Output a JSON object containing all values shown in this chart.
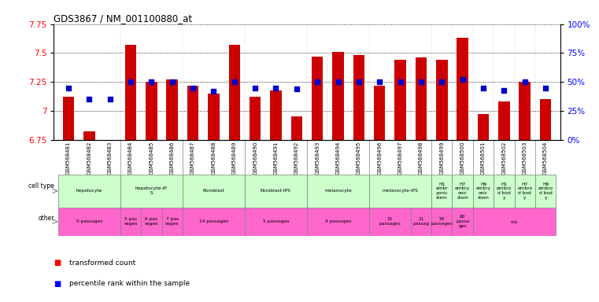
{
  "title": "GDS3867 / NM_001100880_at",
  "samples": [
    "GSM568481",
    "GSM568482",
    "GSM568483",
    "GSM568484",
    "GSM568485",
    "GSM568486",
    "GSM568487",
    "GSM568488",
    "GSM568489",
    "GSM568490",
    "GSM568491",
    "GSM568492",
    "GSM568493",
    "GSM568494",
    "GSM568495",
    "GSM568496",
    "GSM568497",
    "GSM568498",
    "GSM568499",
    "GSM568500",
    "GSM568501",
    "GSM568502",
    "GSM568503",
    "GSM568504"
  ],
  "bar_values": [
    7.12,
    6.82,
    6.73,
    7.57,
    7.25,
    7.27,
    7.22,
    7.15,
    7.57,
    7.12,
    7.18,
    6.95,
    7.47,
    7.51,
    7.48,
    7.22,
    7.44,
    7.46,
    7.44,
    7.63,
    6.97,
    7.08,
    7.25,
    7.1
  ],
  "percentile_values": [
    45,
    35,
    35,
    50,
    50,
    50,
    45,
    42,
    50,
    45,
    45,
    44,
    50,
    50,
    50,
    50,
    50,
    50,
    50,
    52,
    45,
    43,
    50,
    45
  ],
  "ylim_left": [
    6.75,
    7.75
  ],
  "ylim_right": [
    0,
    100
  ],
  "yticks_left": [
    6.75,
    7.0,
    7.25,
    7.5,
    7.75
  ],
  "ytick_labels_left": [
    "6.75",
    "7",
    "7.25",
    "7.5",
    "7.75"
  ],
  "yticks_right": [
    0,
    25,
    50,
    75,
    100
  ],
  "ytick_labels_right": [
    "0%",
    "25%",
    "50%",
    "75%",
    "100%"
  ],
  "bar_color": "#cc0000",
  "dot_color": "#0000cc",
  "cell_groups": [
    {
      "label": "hepatocyte",
      "start": 0,
      "end": 3,
      "color": "#ccffcc"
    },
    {
      "label": "hepatocyte-iP\nS",
      "start": 3,
      "end": 6,
      "color": "#ccffcc"
    },
    {
      "label": "fibroblast",
      "start": 6,
      "end": 9,
      "color": "#ccffcc"
    },
    {
      "label": "fibroblast-IPS",
      "start": 9,
      "end": 12,
      "color": "#ccffcc"
    },
    {
      "label": "melanocyte",
      "start": 12,
      "end": 15,
      "color": "#ccffcc"
    },
    {
      "label": "melanocyte-IPS",
      "start": 15,
      "end": 18,
      "color": "#ccffcc"
    },
    {
      "label": "H1\nembr\nyonic\nstem",
      "start": 18,
      "end": 19,
      "color": "#ccffcc"
    },
    {
      "label": "H7\nembry\nonic\nstem",
      "start": 19,
      "end": 20,
      "color": "#ccffcc"
    },
    {
      "label": "H9\nembry\nonic\nstem",
      "start": 20,
      "end": 21,
      "color": "#ccffcc"
    },
    {
      "label": "H1\nembro\nd bod\ny",
      "start": 21,
      "end": 22,
      "color": "#ccffcc"
    },
    {
      "label": "H7\nembro\nd bod\ny",
      "start": 22,
      "end": 23,
      "color": "#ccffcc"
    },
    {
      "label": "H9\nembro\nd bod\ny",
      "start": 23,
      "end": 24,
      "color": "#ccffcc"
    }
  ],
  "other_groups": [
    {
      "label": "0 passages",
      "start": 0,
      "end": 3,
      "color": "#ff66cc"
    },
    {
      "label": "5 pas\nsages",
      "start": 3,
      "end": 4,
      "color": "#ff66cc"
    },
    {
      "label": "6 pas\nsages",
      "start": 4,
      "end": 5,
      "color": "#ff66cc"
    },
    {
      "label": "7 pas\nsages",
      "start": 5,
      "end": 6,
      "color": "#ff66cc"
    },
    {
      "label": "14 passages",
      "start": 6,
      "end": 9,
      "color": "#ff66cc"
    },
    {
      "label": "5 passages",
      "start": 9,
      "end": 12,
      "color": "#ff66cc"
    },
    {
      "label": "4 passages",
      "start": 12,
      "end": 15,
      "color": "#ff66cc"
    },
    {
      "label": "15\npassages",
      "start": 15,
      "end": 17,
      "color": "#ff66cc"
    },
    {
      "label": "11\npassag",
      "start": 17,
      "end": 18,
      "color": "#ff66cc"
    },
    {
      "label": "50\npassages",
      "start": 18,
      "end": 19,
      "color": "#ff66cc"
    },
    {
      "label": "60\npassa\nges",
      "start": 19,
      "end": 20,
      "color": "#ff66cc"
    },
    {
      "label": "n/a",
      "start": 20,
      "end": 24,
      "color": "#ff66cc"
    }
  ],
  "bg_color": "#ffffff",
  "grid_color": "#000000",
  "tick_label_bg": "#dddddd"
}
